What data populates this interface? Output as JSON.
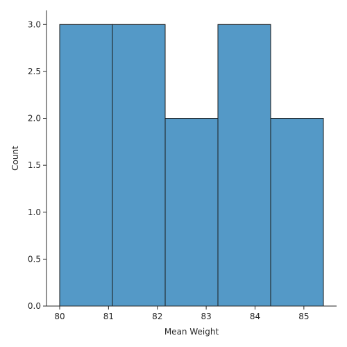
{
  "chart_data": {
    "type": "bar",
    "title": "",
    "xlabel": "Mean Weight",
    "ylabel": "Count",
    "bins": [
      {
        "start": 80.0,
        "end": 81.08,
        "count": 3
      },
      {
        "start": 81.08,
        "end": 82.16,
        "count": 3
      },
      {
        "start": 82.16,
        "end": 83.24,
        "count": 2
      },
      {
        "start": 83.24,
        "end": 84.32,
        "count": 3
      },
      {
        "start": 84.32,
        "end": 85.4,
        "count": 2
      }
    ],
    "xlim": [
      79.73,
      85.67
    ],
    "ylim": [
      0,
      3.15
    ],
    "xticks": [
      80,
      81,
      82,
      83,
      84,
      85
    ],
    "xtick_labels": [
      "80",
      "81",
      "82",
      "83",
      "84",
      "85"
    ],
    "yticks": [
      0,
      0.5,
      1.0,
      1.5,
      2.0,
      2.5,
      3.0
    ],
    "ytick_labels": [
      "0.0",
      "0.5",
      "1.0",
      "1.5",
      "2.0",
      "2.5",
      "3.0"
    ],
    "bar_color": "#5499c7",
    "grid": false,
    "legend": "none"
  }
}
